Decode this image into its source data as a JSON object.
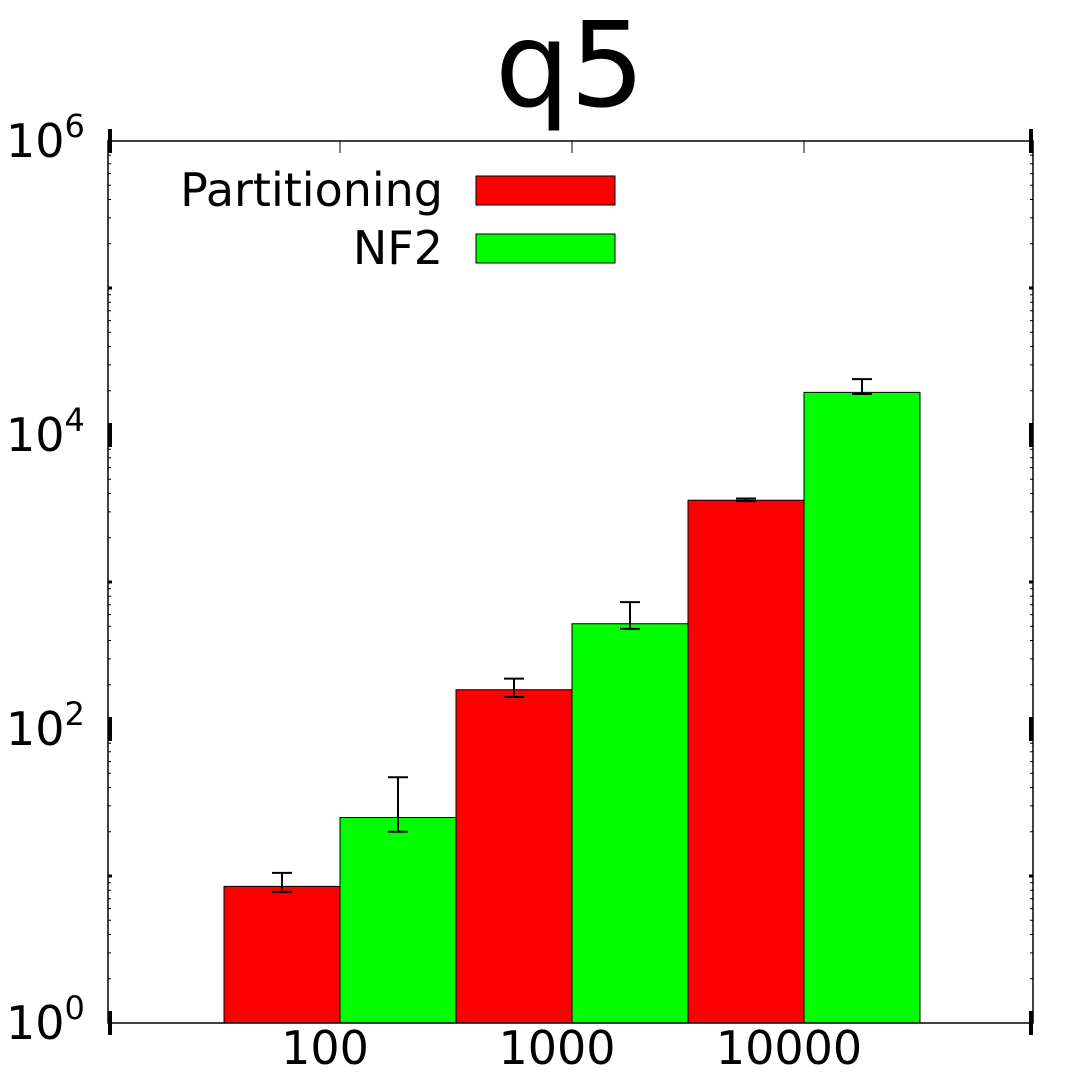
{
  "chart_data": {
    "type": "bar",
    "title": "q5",
    "xlabel": "",
    "ylabel": "",
    "yscale": "log",
    "ylim": [
      1,
      1000000
    ],
    "categories": [
      "100",
      "1000",
      "10000"
    ],
    "series": [
      {
        "name": "Partitioning",
        "color": "#ff0000",
        "values": [
          8.5,
          185,
          3600
        ],
        "error_low": [
          7.8,
          165,
          3550
        ],
        "error_high": [
          10.5,
          220,
          3700
        ]
      },
      {
        "name": "NF2",
        "color": "#00ff00",
        "values": [
          25,
          520,
          19500
        ],
        "error_low": [
          20,
          480,
          19000
        ],
        "error_high": [
          47,
          730,
          24000
        ]
      }
    ],
    "y_ticks": [
      {
        "value": 1,
        "base": "10",
        "exp": "0"
      },
      {
        "value": 100,
        "base": "10",
        "exp": "2"
      },
      {
        "value": 10000,
        "base": "10",
        "exp": "4"
      },
      {
        "value": 1000000,
        "base": "10",
        "exp": "6"
      }
    ],
    "grid": false,
    "legend_position": "top-left"
  }
}
